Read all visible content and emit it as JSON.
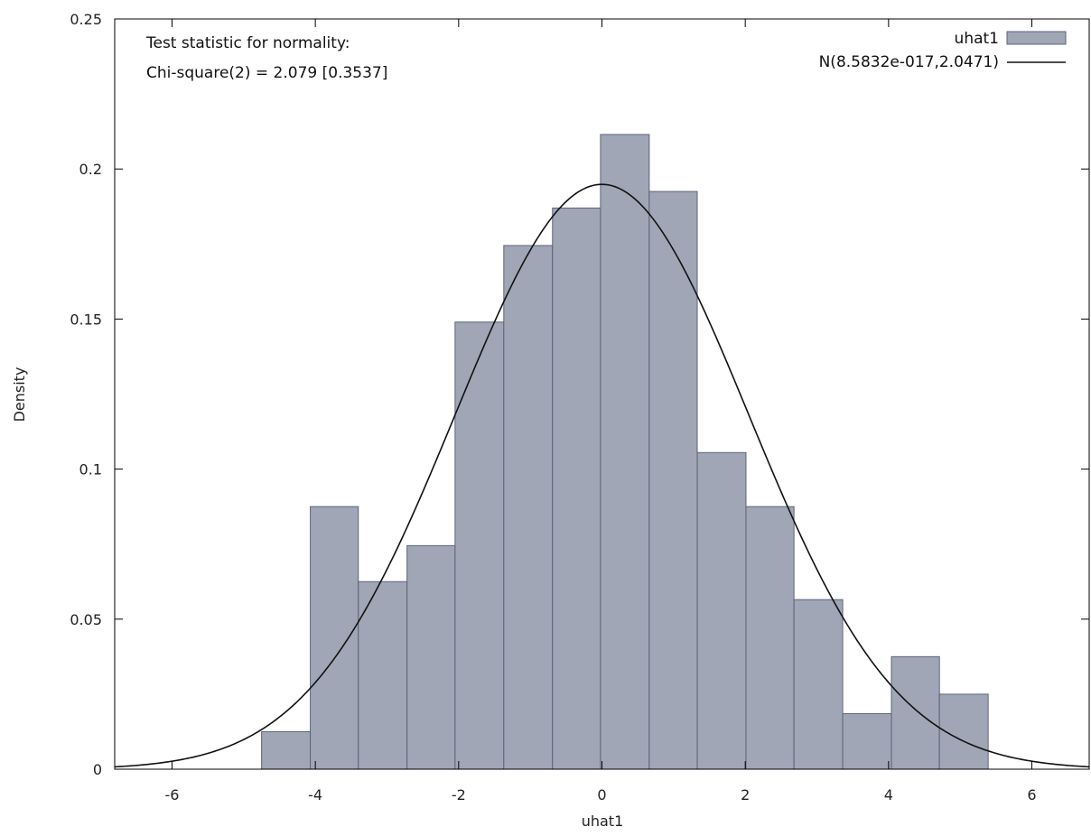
{
  "chart_data": {
    "type": "bar",
    "xlabel": "uhat1",
    "ylabel": "Density",
    "xlim": [
      -6.8,
      6.8
    ],
    "ylim": [
      0,
      0.25
    ],
    "grid": false,
    "legend_placement": "top-right",
    "x_ticks": [
      -6,
      -4,
      -2,
      0,
      2,
      4,
      6
    ],
    "y_ticks": [
      0,
      0.05,
      0.1,
      0.15,
      0.2,
      0.25
    ],
    "x_tick_labels": [
      "-6",
      "-4",
      "-2",
      "0",
      "2",
      "4",
      "6"
    ],
    "y_tick_labels": [
      "0",
      "0.05",
      "0.1",
      "0.15",
      "0.2",
      "0.25"
    ],
    "annotations": [
      "Test statistic for normality:",
      "Chi-square(2) = 2.079 [0.3537]"
    ],
    "histogram": {
      "name": "uhat1",
      "color": "#a0a6b6",
      "edge_color": "#5a6478",
      "bins": [
        {
          "x0": -4.75,
          "x1": -4.07,
          "density": 0.0125
        },
        {
          "x0": -4.07,
          "x1": -3.4,
          "density": 0.0875
        },
        {
          "x0": -3.4,
          "x1": -2.72,
          "density": 0.0625
        },
        {
          "x0": -2.72,
          "x1": -2.05,
          "density": 0.0745
        },
        {
          "x0": -2.05,
          "x1": -1.37,
          "density": 0.149
        },
        {
          "x0": -1.37,
          "x1": -0.69,
          "density": 0.1745
        },
        {
          "x0": -0.69,
          "x1": -0.02,
          "density": 0.187
        },
        {
          "x0": -0.02,
          "x1": 0.66,
          "density": 0.2115
        },
        {
          "x0": 0.66,
          "x1": 1.33,
          "density": 0.1925
        },
        {
          "x0": 1.33,
          "x1": 2.01,
          "density": 0.1055
        },
        {
          "x0": 2.01,
          "x1": 2.68,
          "density": 0.0875
        },
        {
          "x0": 2.68,
          "x1": 3.36,
          "density": 0.0565
        },
        {
          "x0": 3.36,
          "x1": 4.04,
          "density": 0.0185
        },
        {
          "x0": 4.04,
          "x1": 4.71,
          "density": 0.0375
        },
        {
          "x0": 4.71,
          "x1": 5.39,
          "density": 0.025
        }
      ]
    },
    "normal_curve": {
      "name": "N(8.5832e-017,2.0471)",
      "mean": 8.5832e-17,
      "sd": 2.0471,
      "color": "#111111"
    }
  }
}
